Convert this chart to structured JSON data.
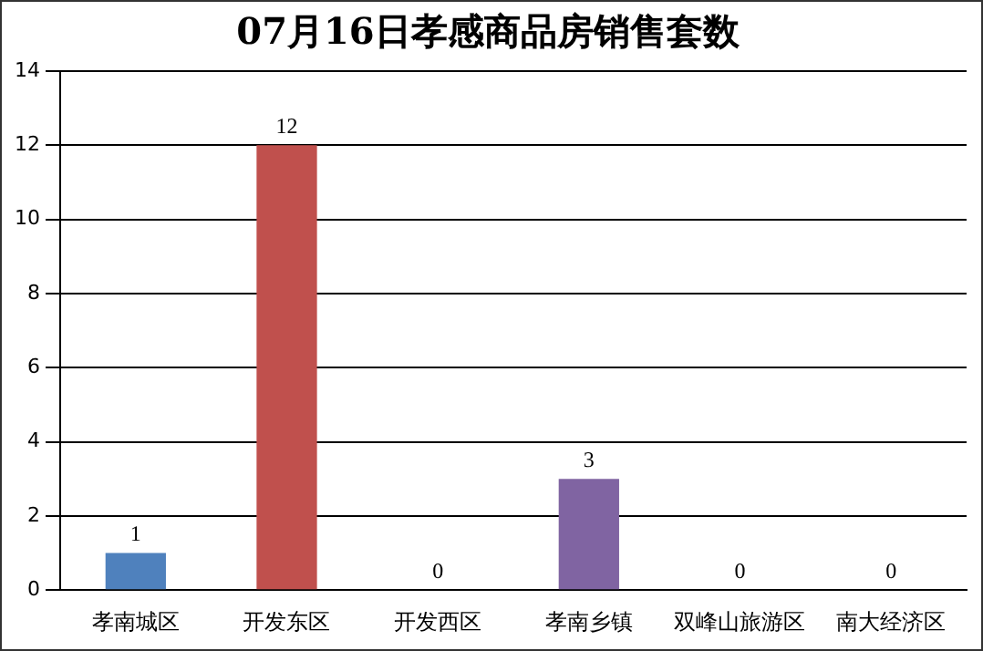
{
  "chart_data": {
    "type": "bar",
    "title": "07月16日孝感商品房销售套数",
    "categories": [
      "孝南城区",
      "开发东区",
      "开发西区",
      "孝南乡镇",
      "双峰山旅游区",
      "南大经济区"
    ],
    "values": [
      1,
      12,
      0,
      3,
      0,
      0
    ],
    "colors": [
      "#4f81bd",
      "#c0504d",
      "#9bbb59",
      "#8064a2",
      "#4bacc6",
      "#f79646"
    ],
    "ylim": [
      0,
      14
    ],
    "yticks": [
      0,
      2,
      4,
      6,
      8,
      10,
      12,
      14
    ],
    "grid": "y",
    "data_labels": true,
    "legend": false
  }
}
